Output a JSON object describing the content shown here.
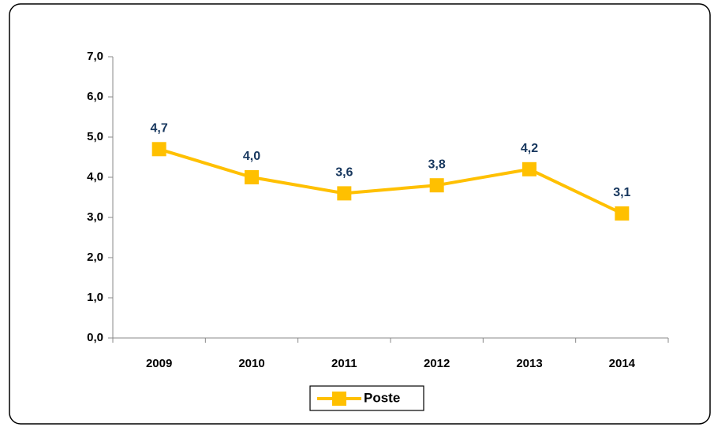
{
  "chart_data": {
    "type": "line",
    "categories": [
      "2009",
      "2010",
      "2011",
      "2012",
      "2013",
      "2014"
    ],
    "series": [
      {
        "name": "Poste",
        "color": "#ffc000",
        "values": [
          4.7,
          4.0,
          3.6,
          3.8,
          4.2,
          3.1
        ],
        "value_labels": [
          "4,7",
          "4,0",
          "3,6",
          "3,8",
          "4,2",
          "3,1"
        ]
      }
    ],
    "ylim": [
      0,
      7
    ],
    "yticks": [
      {
        "value": 0,
        "label": "0,0"
      },
      {
        "value": 1,
        "label": "1,0"
      },
      {
        "value": 2,
        "label": "2,0"
      },
      {
        "value": 3,
        "label": "3,0"
      },
      {
        "value": 4,
        "label": "4,0"
      },
      {
        "value": 5,
        "label": "5,0"
      },
      {
        "value": 6,
        "label": "6,0"
      },
      {
        "value": 7,
        "label": "7,0"
      }
    ],
    "grid": false,
    "legend": "bottom"
  }
}
